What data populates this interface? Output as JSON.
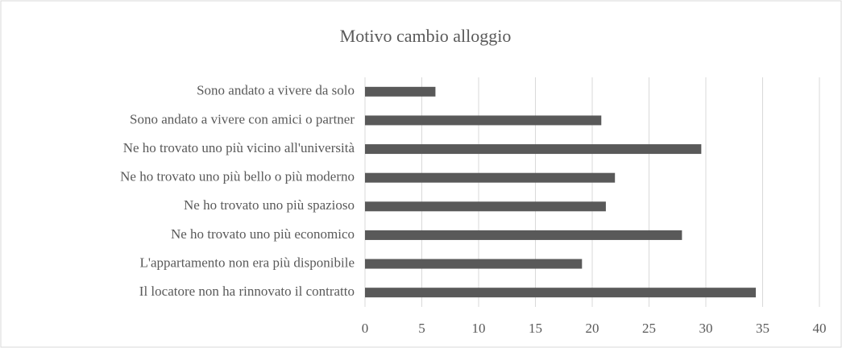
{
  "chart_data": {
    "type": "bar",
    "orientation": "horizontal",
    "title": "Motivo cambio alloggio",
    "categories": [
      "Sono andato a vivere da solo",
      "Sono andato a vivere con amici o partner",
      "Ne ho trovato uno più vicino all'università",
      "Ne ho trovato uno più bello o più moderno",
      "Ne ho trovato uno più spazioso",
      "Ne ho trovato uno più economico",
      "L'appartamento non era più disponibile",
      "Il locatore non ha rinnovato il contratto"
    ],
    "values": [
      6.2,
      20.8,
      29.6,
      22.0,
      21.2,
      27.9,
      19.1,
      34.4
    ],
    "color": "#595959",
    "xlim": [
      0,
      40
    ],
    "xticks": [
      0,
      5,
      10,
      15,
      20,
      25,
      30,
      35,
      40
    ],
    "grid": true
  }
}
